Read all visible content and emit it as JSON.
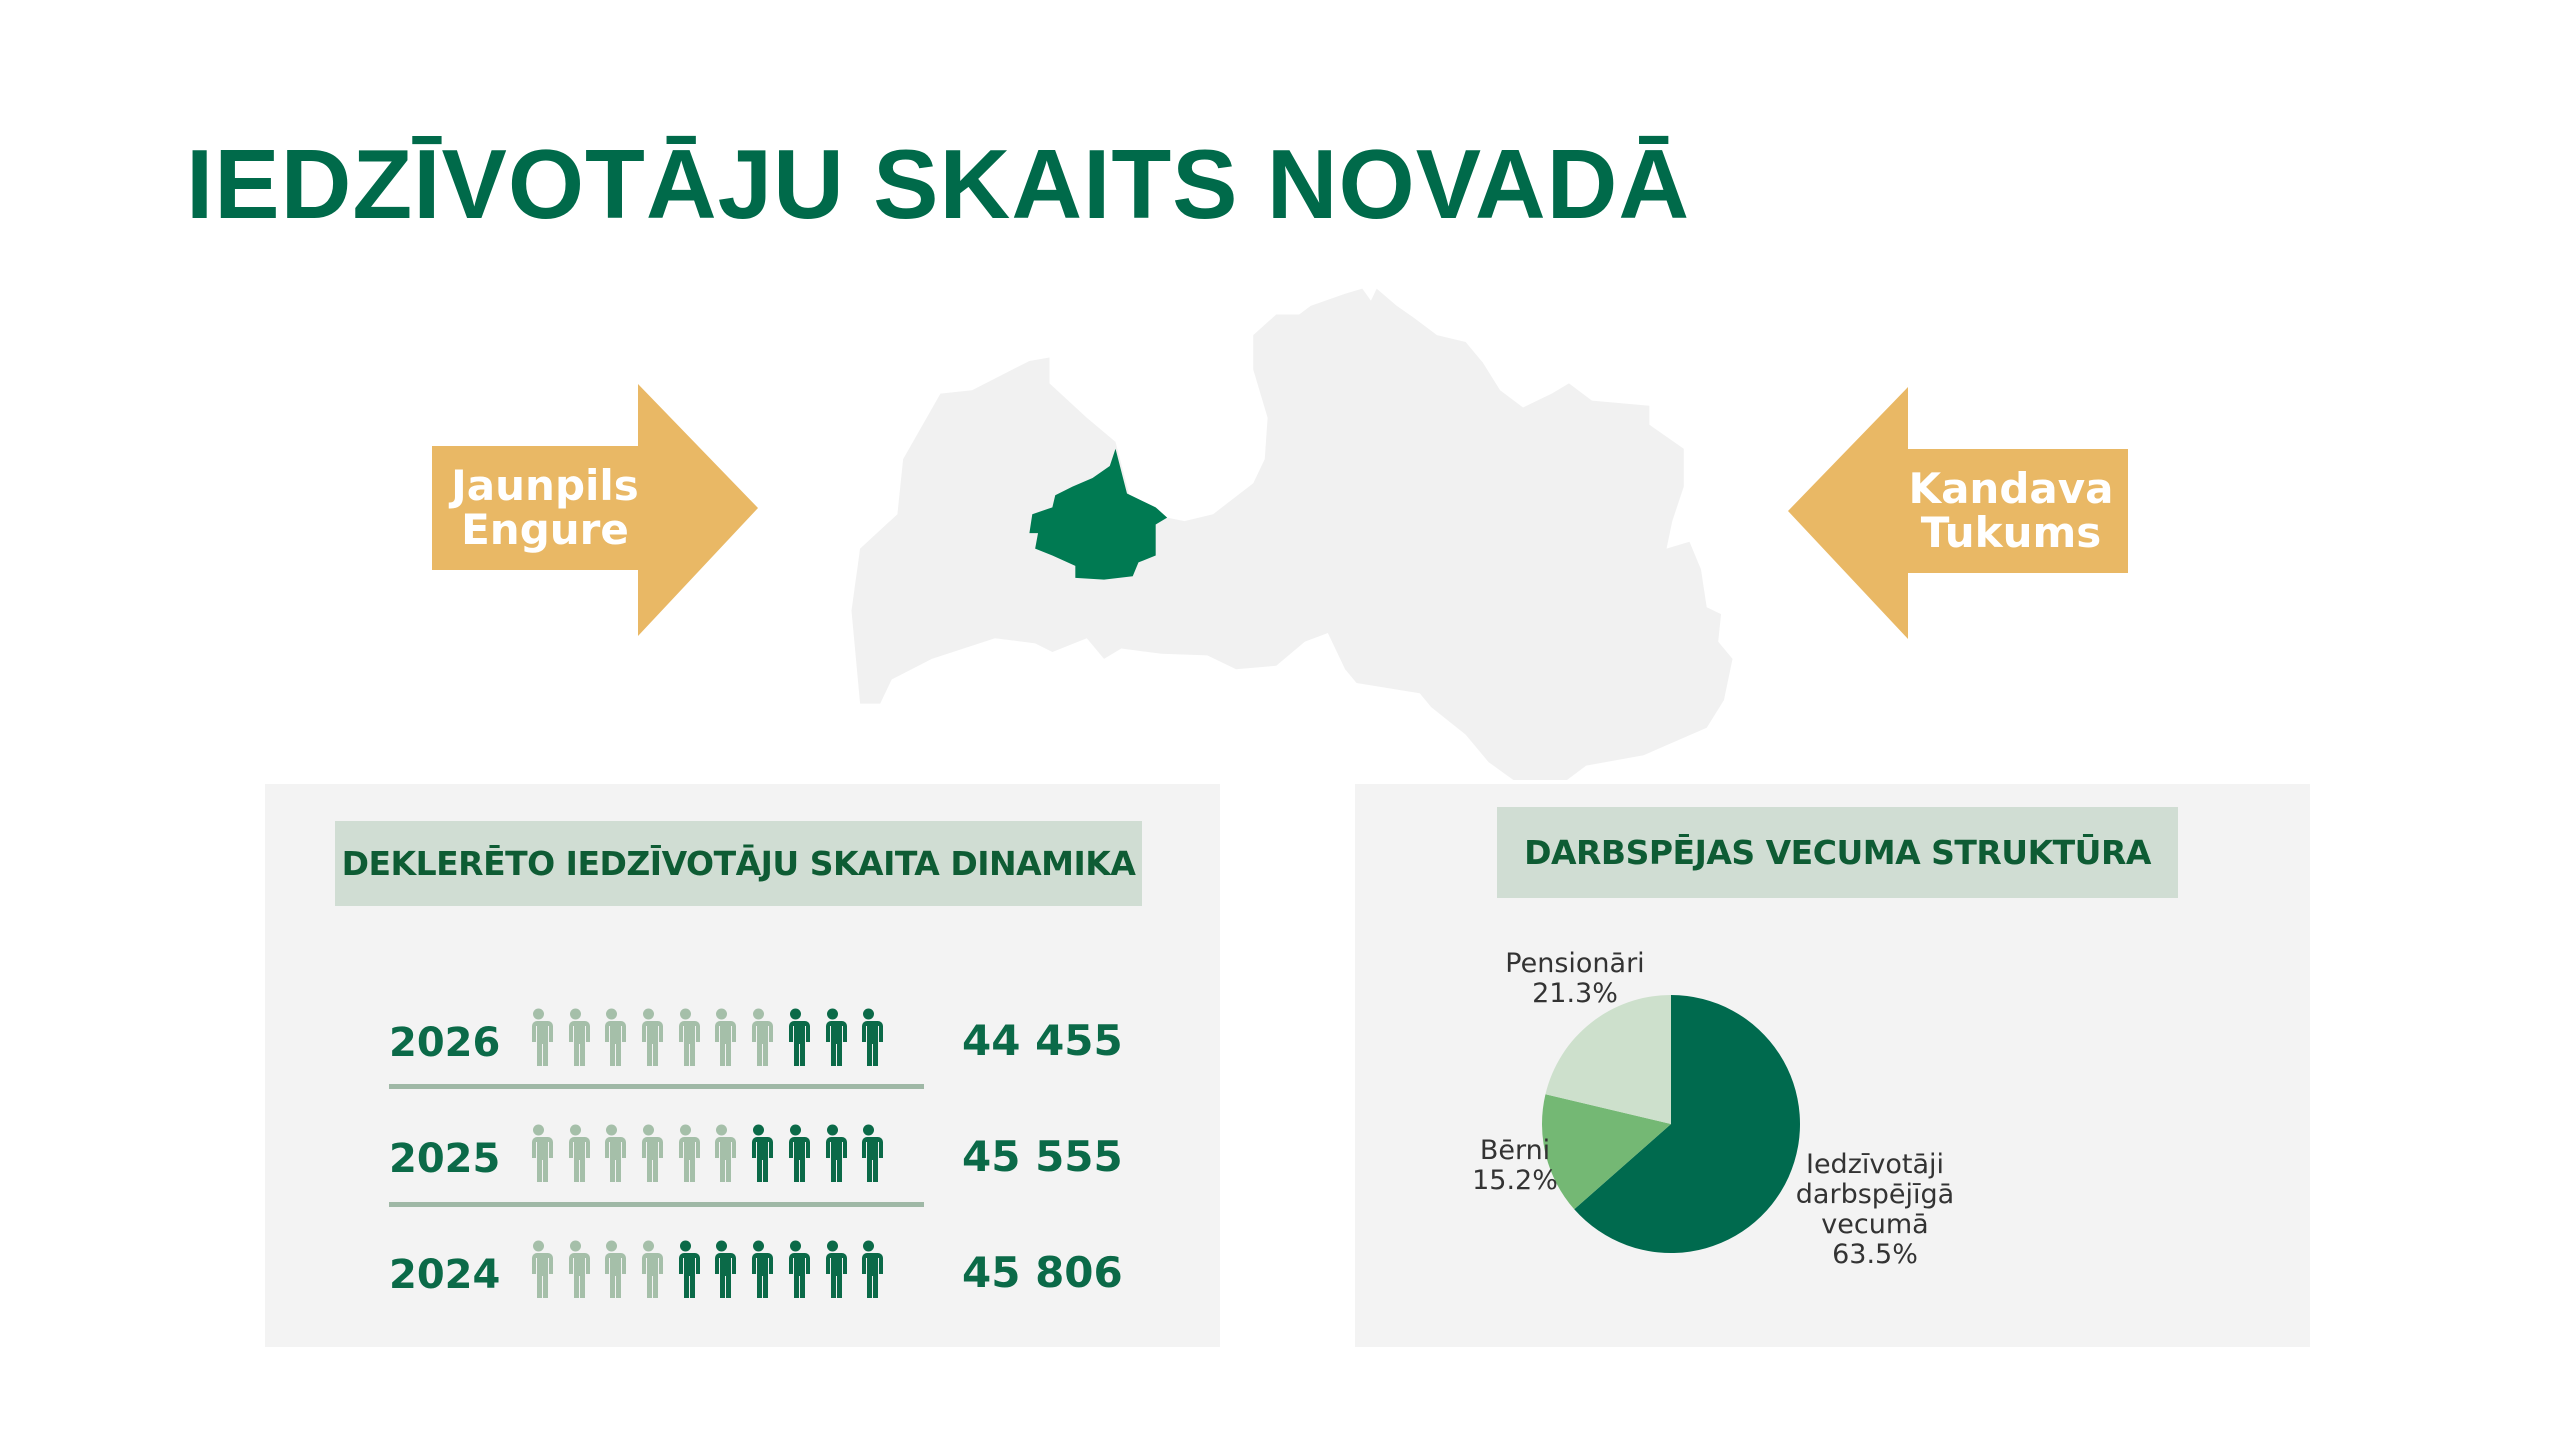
{
  "title": "IEDZĪVOTĀJU SKAITS NOVADĀ",
  "arrows": {
    "left": {
      "line1": "Jaunpils",
      "line2": "Engure"
    },
    "right": {
      "line1": "Kandava",
      "line2": "Tukums"
    }
  },
  "colors": {
    "primary": "#006a4a",
    "arrow": "#e9b865",
    "map": "#f1f1f1",
    "highlight": "#007a52",
    "person_light": "#a5bfa9",
    "person_dark": "#0b6a48"
  },
  "population": {
    "heading": "DEKLERĒTO IEDZĪVOTĀJU SKAITA DINAMIKA",
    "rows": [
      {
        "year": "2026",
        "count": "44 455",
        "dark_icons": 3,
        "total_icons": 10
      },
      {
        "year": "2025",
        "count": "45 555",
        "dark_icons": 4,
        "total_icons": 10
      },
      {
        "year": "2024",
        "count": "45 806",
        "dark_icons": 6,
        "total_icons": 10
      }
    ]
  },
  "chart_data": {
    "type": "pie",
    "title": "DARBSPĒJAS VECUMA STRUKTŪRA",
    "slices": [
      {
        "label": "Iedzīvotāji darbspējīgā vecumā",
        "value": 63.5,
        "value_label": "63.5%",
        "color": "#006a4e"
      },
      {
        "label": "Bērni",
        "value": 15.2,
        "value_label": "15.2%",
        "color": "#74b874"
      },
      {
        "label": "Pensionāri",
        "value": 21.3,
        "value_label": "21.3%",
        "color": "#cde0cc"
      }
    ],
    "label_lines": [
      "Iedzīvotāji",
      "darbspējīgā",
      "vecumā"
    ]
  }
}
